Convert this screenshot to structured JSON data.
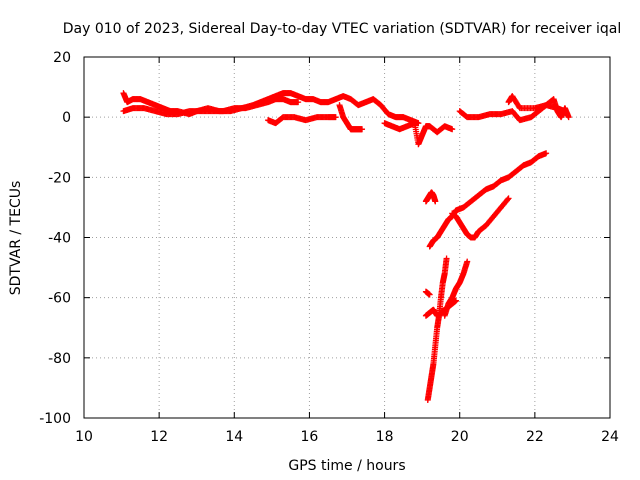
{
  "chart_data": {
    "type": "scatter",
    "title": "Day 010 of 2023, Sidereal Day-to-day VTEC variation (SDTVAR) for receiver iqal",
    "xlabel": "GPS time / hours",
    "ylabel": "SDTVAR / TECUs",
    "xlim": [
      10,
      24
    ],
    "ylim": [
      -100,
      20
    ],
    "xticks": [
      10,
      12,
      14,
      16,
      18,
      20,
      22,
      24
    ],
    "yticks": [
      -100,
      -80,
      -60,
      -40,
      -20,
      0,
      20
    ],
    "grid": true,
    "marker": "plus",
    "color": "#ff0000",
    "series": [
      {
        "x": [
          11.05,
          11.15,
          11.3,
          11.5,
          11.7,
          11.9,
          12.1,
          12.3,
          12.5,
          12.8,
          13.0,
          13.3,
          13.6,
          13.9,
          14.2,
          14.5,
          14.7,
          14.9,
          15.1,
          15.3,
          15.5,
          15.7,
          15.9,
          16.1,
          16.3,
          16.5,
          16.7,
          16.9,
          17.1,
          17.3,
          17.5,
          17.7,
          17.9,
          18.1,
          18.3,
          18.5,
          18.7,
          18.9
        ],
        "y": [
          8,
          5,
          6,
          6,
          5,
          4,
          3,
          2,
          2,
          1,
          2,
          3,
          2,
          2,
          3,
          4,
          5,
          6,
          7,
          8,
          8,
          7,
          6,
          6,
          5,
          5,
          6,
          7,
          6,
          4,
          5,
          6,
          4,
          1,
          0,
          0,
          -1,
          -2
        ]
      },
      {
        "x": [
          11.05,
          11.3,
          11.6,
          11.9,
          12.2,
          12.5,
          12.8,
          13.1,
          13.4,
          13.7,
          14.0,
          14.3,
          14.6,
          14.9,
          15.1,
          15.3,
          15.5,
          15.7
        ],
        "y": [
          2,
          3,
          3,
          2,
          1,
          1,
          2,
          2,
          2,
          2,
          3,
          3,
          4,
          5,
          6,
          6,
          5,
          5
        ]
      },
      {
        "x": [
          14.9,
          15.1,
          15.3,
          15.6,
          15.9,
          16.2,
          16.5,
          16.7
        ],
        "y": [
          -1,
          -2,
          0,
          0,
          -1,
          0,
          0,
          0
        ]
      },
      {
        "x": [
          16.8,
          16.9,
          17.0,
          17.1,
          17.2,
          17.3,
          17.4
        ],
        "y": [
          4,
          0,
          -2,
          -4,
          -4,
          -4,
          -4
        ]
      },
      {
        "x": [
          18.0,
          18.2,
          18.4,
          18.6,
          18.8,
          18.9,
          19.0,
          19.1,
          19.2,
          19.4,
          19.6,
          19.8
        ],
        "y": [
          -2,
          -3,
          -4,
          -3,
          -2,
          -9,
          -6,
          -3,
          -3,
          -5,
          -3,
          -4
        ]
      },
      {
        "x": [
          20.0,
          20.2,
          20.5,
          20.8,
          21.1,
          21.4,
          21.6,
          21.9,
          22.1,
          22.3,
          22.6,
          22.8
        ],
        "y": [
          2,
          0,
          0,
          1,
          1,
          2,
          -1,
          0,
          2,
          4,
          3,
          2
        ]
      },
      {
        "x": [
          21.3,
          21.4,
          21.6,
          22.0,
          22.3,
          22.5,
          22.6,
          22.7,
          22.8,
          22.9
        ],
        "y": [
          5,
          7,
          3,
          3,
          4,
          6,
          2,
          0,
          3,
          0
        ]
      },
      {
        "x": [
          19.1,
          19.15,
          19.2,
          19.25,
          19.3,
          19.35
        ],
        "y": [
          -28,
          -27,
          -26,
          -25,
          -26,
          -28
        ]
      },
      {
        "x": [
          19.2,
          19.3,
          19.4,
          19.5,
          19.6,
          19.7,
          19.8,
          19.9,
          20.1,
          20.3,
          20.5,
          20.7,
          20.9,
          21.1,
          21.3,
          21.5,
          21.7,
          21.9,
          22.1,
          22.3
        ],
        "y": [
          -43,
          -41,
          -40,
          -38,
          -36,
          -34,
          -33,
          -31,
          -30,
          -28,
          -26,
          -24,
          -23,
          -21,
          -20,
          -18,
          -16,
          -15,
          -13,
          -12
        ]
      },
      {
        "x": [
          19.8,
          19.9,
          20.0,
          20.1,
          20.2,
          20.3,
          20.4,
          20.5,
          20.7,
          20.9,
          21.1,
          21.3
        ],
        "y": [
          -32,
          -33,
          -35,
          -37,
          -39,
          -40,
          -40,
          -38,
          -36,
          -33,
          -30,
          -27
        ]
      },
      {
        "x": [
          19.1,
          19.2,
          19.3,
          19.4,
          19.5,
          19.6,
          19.7,
          19.8,
          19.9
        ],
        "y": [
          -66,
          -65,
          -64,
          -66,
          -65,
          -64,
          -63,
          -62,
          -61
        ]
      },
      {
        "x": [
          19.15,
          19.2,
          19.25,
          19.3,
          19.35,
          19.4,
          19.45,
          19.5,
          19.55,
          19.6,
          19.65
        ],
        "y": [
          -94,
          -90,
          -86,
          -82,
          -76,
          -70,
          -66,
          -60,
          -55,
          -52,
          -47
        ]
      },
      {
        "x": [
          19.6,
          19.7,
          19.8,
          19.9,
          20.0,
          20.1,
          20.2
        ],
        "y": [
          -66,
          -62,
          -60,
          -57,
          -55,
          -52,
          -48
        ]
      },
      {
        "x": [
          19.1,
          19.2
        ],
        "y": [
          -58,
          -59
        ]
      }
    ]
  }
}
